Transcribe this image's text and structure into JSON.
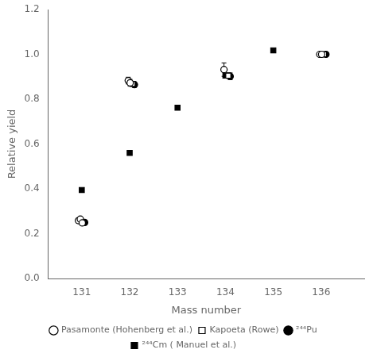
{
  "chart_data": {
    "type": "scatter",
    "xlabel": "Mass number",
    "ylabel": "Relative yield",
    "xlim": [
      130.3,
      136.9
    ],
    "ylim": [
      0,
      1.2
    ],
    "xticks": [
      131,
      132,
      133,
      134,
      135,
      136
    ],
    "yticks": [
      {
        "value": 0,
        "label": "0.0"
      },
      0.2,
      0.4,
      0.6,
      0.8,
      {
        "value": 1.0,
        "label": "1.0"
      },
      1.2
    ],
    "grid": false,
    "legend": "bottom",
    "series": [
      {
        "name": "Pasamonte (Hohenberg et al.)",
        "color": "black",
        "marker": "open circle",
        "x": [
          130.93,
          130.97,
          131.01,
          131.97,
          132.01,
          133.97,
          135.97,
          136.01
        ],
        "values": [
          0.258,
          0.265,
          0.248,
          0.883,
          0.873,
          0.932,
          1.0,
          1.0
        ],
        "yerr": [
          0.01,
          0.01,
          0.01,
          0.015,
          0.015,
          0.03,
          0.005,
          0.005
        ]
      },
      {
        "name": "Kapoeta (Rowe)",
        "color": "black",
        "marker": "open square",
        "x": [
          132.06,
          134.06,
          136.06
        ],
        "values": [
          0.868,
          0.905,
          1.0
        ],
        "yerr": [
          0.01,
          0.012,
          0.005
        ]
      },
      {
        "name": "²⁴⁴Pu",
        "color": "black",
        "marker": "circle",
        "x": [
          131.06,
          132.1,
          134.1,
          136.1
        ],
        "values": [
          0.25,
          0.865,
          0.902,
          1.0
        ],
        "yerr": [
          0.01,
          0.012,
          0.015,
          0.005
        ]
      },
      {
        "name": "²⁴⁴Cm ( Manuel et al.)",
        "color": "black",
        "marker": "square",
        "x": [
          131,
          132,
          133,
          134,
          135,
          136
        ],
        "values": [
          0.395,
          0.56,
          0.762,
          0.905,
          1.018,
          1.0
        ]
      }
    ]
  }
}
